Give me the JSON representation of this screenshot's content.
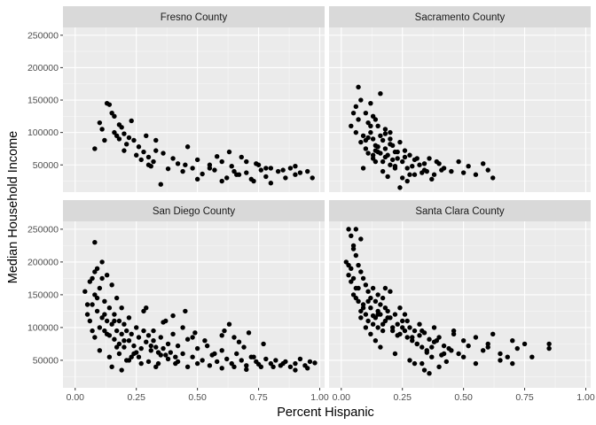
{
  "chart_data": {
    "type": "scatter",
    "xlabel": "Percent Hispanic",
    "ylabel": "Median Household Income",
    "xlim": [
      -0.05,
      1.02
    ],
    "ylim": [
      8000,
      262000
    ],
    "x_ticks": [
      0.0,
      0.25,
      0.5,
      0.75,
      1.0
    ],
    "x_tick_labels": [
      "0.00",
      "0.25",
      "0.50",
      "0.75",
      "1.00"
    ],
    "y_ticks": [
      50000,
      100000,
      150000,
      200000,
      250000
    ],
    "y_tick_labels": [
      "50000",
      "100000",
      "150000",
      "200000",
      "250000"
    ],
    "grid": true,
    "facets": [
      {
        "title": "Fresno County",
        "x": [
          0.08,
          0.1,
          0.11,
          0.13,
          0.14,
          0.15,
          0.16,
          0.16,
          0.17,
          0.18,
          0.18,
          0.19,
          0.2,
          0.21,
          0.22,
          0.23,
          0.24,
          0.25,
          0.26,
          0.27,
          0.28,
          0.29,
          0.3,
          0.31,
          0.32,
          0.33,
          0.35,
          0.36,
          0.38,
          0.4,
          0.42,
          0.44,
          0.46,
          0.48,
          0.5,
          0.52,
          0.55,
          0.57,
          0.6,
          0.62,
          0.64,
          0.66,
          0.68,
          0.7,
          0.72,
          0.74,
          0.76,
          0.78,
          0.8,
          0.83,
          0.86,
          0.88,
          0.9,
          0.92,
          0.95,
          0.97,
          0.12,
          0.2,
          0.3,
          0.33,
          0.45,
          0.5,
          0.55,
          0.6,
          0.65,
          0.7,
          0.75,
          0.8,
          0.85,
          0.9,
          0.58,
          0.63,
          0.67,
          0.73,
          0.78
        ],
        "y": [
          75000,
          115000,
          105000,
          145000,
          143000,
          130000,
          125000,
          100000,
          95000,
          112000,
          90000,
          108000,
          98000,
          82000,
          92000,
          118000,
          88000,
          65000,
          78000,
          58000,
          70000,
          95000,
          62000,
          48000,
          55000,
          72000,
          20000,
          68000,
          44000,
          60000,
          52000,
          40000,
          78000,
          45000,
          58000,
          36000,
          50000,
          42000,
          55000,
          30000,
          48000,
          35000,
          62000,
          38000,
          28000,
          52000,
          42000,
          32000,
          45000,
          40000,
          30000,
          45000,
          35000,
          38000,
          40000,
          30000,
          88000,
          72000,
          50000,
          88000,
          50000,
          28000,
          45000,
          25000,
          40000,
          55000,
          50000,
          22000,
          42000,
          48000,
          63000,
          70000,
          35000,
          25000,
          45000
        ]
      },
      {
        "title": "Sacramento County",
        "x": [
          0.04,
          0.05,
          0.06,
          0.07,
          0.07,
          0.08,
          0.08,
          0.09,
          0.1,
          0.1,
          0.11,
          0.11,
          0.12,
          0.12,
          0.13,
          0.13,
          0.14,
          0.14,
          0.15,
          0.15,
          0.16,
          0.16,
          0.17,
          0.17,
          0.18,
          0.18,
          0.19,
          0.2,
          0.2,
          0.21,
          0.22,
          0.23,
          0.24,
          0.25,
          0.26,
          0.27,
          0.28,
          0.3,
          0.32,
          0.34,
          0.36,
          0.38,
          0.4,
          0.42,
          0.45,
          0.48,
          0.5,
          0.52,
          0.55,
          0.58,
          0.6,
          0.62,
          0.09,
          0.13,
          0.17,
          0.21,
          0.25,
          0.29,
          0.33,
          0.37,
          0.41,
          0.06,
          0.1,
          0.14,
          0.18,
          0.22,
          0.26,
          0.3,
          0.34,
          0.15,
          0.19,
          0.23,
          0.27,
          0.31,
          0.35,
          0.39,
          0.12,
          0.16,
          0.2,
          0.24,
          0.28,
          0.11,
          0.14,
          0.18,
          0.22,
          0.13,
          0.2
        ],
        "y": [
          110000,
          130000,
          100000,
          170000,
          120000,
          150000,
          85000,
          95000,
          130000,
          75000,
          115000,
          68000,
          100000,
          145000,
          90000,
          60000,
          120000,
          80000,
          110000,
          70000,
          95000,
          160000,
          88000,
          55000,
          75000,
          105000,
          65000,
          90000,
          50000,
          80000,
          70000,
          60000,
          85000,
          55000,
          72000,
          45000,
          65000,
          58000,
          50000,
          42000,
          60000,
          35000,
          52000,
          45000,
          40000,
          55000,
          38000,
          48000,
          35000,
          52000,
          42000,
          30000,
          45000,
          65000,
          40000,
          58000,
          30000,
          48000,
          38000,
          28000,
          42000,
          140000,
          88000,
          55000,
          98000,
          48000,
          62000,
          35000,
          52000,
          78000,
          32000,
          70000,
          25000,
          60000,
          40000,
          55000,
          110000,
          68000,
          82000,
          15000,
          35000,
          92000,
          72000,
          62000,
          45000,
          125000,
          100000
        ]
      },
      {
        "title": "San Diego County",
        "x": [
          0.04,
          0.05,
          0.06,
          0.06,
          0.07,
          0.07,
          0.08,
          0.08,
          0.08,
          0.09,
          0.09,
          0.1,
          0.1,
          0.11,
          0.11,
          0.12,
          0.12,
          0.13,
          0.13,
          0.14,
          0.14,
          0.15,
          0.15,
          0.16,
          0.16,
          0.17,
          0.17,
          0.18,
          0.18,
          0.19,
          0.19,
          0.2,
          0.2,
          0.21,
          0.22,
          0.22,
          0.23,
          0.24,
          0.25,
          0.26,
          0.27,
          0.28,
          0.29,
          0.3,
          0.31,
          0.32,
          0.33,
          0.34,
          0.35,
          0.36,
          0.37,
          0.38,
          0.39,
          0.4,
          0.41,
          0.42,
          0.44,
          0.46,
          0.48,
          0.5,
          0.52,
          0.54,
          0.56,
          0.58,
          0.6,
          0.62,
          0.64,
          0.66,
          0.68,
          0.7,
          0.72,
          0.74,
          0.76,
          0.78,
          0.8,
          0.82,
          0.84,
          0.86,
          0.88,
          0.9,
          0.92,
          0.94,
          0.96,
          0.98,
          0.1,
          0.14,
          0.18,
          0.22,
          0.26,
          0.3,
          0.34,
          0.38,
          0.42,
          0.46,
          0.5,
          0.55,
          0.6,
          0.65,
          0.7,
          0.75,
          0.12,
          0.16,
          0.2,
          0.24,
          0.28,
          0.32,
          0.36,
          0.4,
          0.44,
          0.48,
          0.05,
          0.09,
          0.13,
          0.17,
          0.21,
          0.25,
          0.29,
          0.33,
          0.37,
          0.41,
          0.45,
          0.49,
          0.53,
          0.57,
          0.61,
          0.65,
          0.69,
          0.73,
          0.77,
          0.81,
          0.15,
          0.19,
          0.23,
          0.27,
          0.31,
          0.35,
          0.11,
          0.07,
          0.08,
          0.6,
          0.63,
          0.67,
          0.71,
          0.85,
          0.9,
          0.95
        ],
        "y": [
          155000,
          120000,
          170000,
          110000,
          135000,
          95000,
          230000,
          150000,
          85000,
          190000,
          125000,
          160000,
          100000,
          175000,
          115000,
          140000,
          95000,
          180000,
          110000,
          130000,
          88000,
          165000,
          105000,
          120000,
          82000,
          145000,
          95000,
          110000,
          75000,
          130000,
          90000,
          105000,
          70000,
          95000,
          115000,
          80000,
          90000,
          72000,
          100000,
          85000,
          68000,
          95000,
          78000,
          88000,
          65000,
          80000,
          70000,
          62000,
          85000,
          68000,
          58000,
          75000,
          62000,
          90000,
          55000,
          72000,
          60000,
          82000,
          55000,
          68000,
          50000,
          72000,
          58000,
          48000,
          65000,
          52000,
          45000,
          60000,
          50000,
          42000,
          55000,
          48000,
          40000,
          52000,
          45000,
          50000,
          42000,
          48000,
          40000,
          45000,
          52000,
          42000,
          48000,
          46000,
          65000,
          55000,
          60000,
          50000,
          55000,
          48000,
          45000,
          52000,
          48000,
          40000,
          45000,
          42000,
          38000,
          40000,
          36000,
          44000,
          120000,
          110000,
          80000,
          60000,
          125000,
          95000,
          108000,
          118000,
          100000,
          85000,
          135000,
          145000,
          90000,
          70000,
          50000,
          62000,
          130000,
          40000,
          110000,
          45000,
          125000,
          92000,
          80000,
          60000,
          95000,
          85000,
          70000,
          55000,
          75000,
          40000,
          40000,
          35000,
          55000,
          45000,
          72000,
          58000,
          200000,
          175000,
          185000,
          88000,
          105000,
          78000,
          92000,
          45000,
          35000,
          38000
        ]
      },
      {
        "title": "Santa Clara County",
        "x": [
          0.02,
          0.03,
          0.03,
          0.04,
          0.04,
          0.05,
          0.05,
          0.06,
          0.06,
          0.07,
          0.07,
          0.08,
          0.08,
          0.09,
          0.09,
          0.1,
          0.1,
          0.11,
          0.11,
          0.12,
          0.12,
          0.13,
          0.13,
          0.14,
          0.14,
          0.15,
          0.15,
          0.16,
          0.16,
          0.17,
          0.17,
          0.18,
          0.18,
          0.19,
          0.2,
          0.21,
          0.22,
          0.23,
          0.24,
          0.25,
          0.26,
          0.27,
          0.28,
          0.29,
          0.3,
          0.31,
          0.32,
          0.33,
          0.34,
          0.35,
          0.36,
          0.37,
          0.38,
          0.4,
          0.42,
          0.44,
          0.46,
          0.48,
          0.5,
          0.52,
          0.55,
          0.58,
          0.6,
          0.62,
          0.65,
          0.68,
          0.7,
          0.72,
          0.75,
          0.78,
          0.85,
          0.85,
          0.05,
          0.07,
          0.09,
          0.11,
          0.13,
          0.15,
          0.17,
          0.19,
          0.21,
          0.23,
          0.25,
          0.27,
          0.29,
          0.31,
          0.33,
          0.35,
          0.37,
          0.39,
          0.41,
          0.43,
          0.45,
          0.04,
          0.06,
          0.08,
          0.1,
          0.12,
          0.14,
          0.16,
          0.18,
          0.2,
          0.22,
          0.24,
          0.26,
          0.28,
          0.3,
          0.32,
          0.34,
          0.36,
          0.4,
          0.15,
          0.33,
          0.38,
          0.42,
          0.46,
          0.5,
          0.55,
          0.6,
          0.65,
          0.7,
          0.05,
          0.06,
          0.08,
          0.03
        ],
        "y": [
          200000,
          250000,
          180000,
          240000,
          170000,
          225000,
          150000,
          210000,
          160000,
          195000,
          140000,
          185000,
          125000,
          175000,
          135000,
          165000,
          120000,
          155000,
          110000,
          145000,
          130000,
          160000,
          105000,
          140000,
          115000,
          150000,
          100000,
          135000,
          120000,
          145000,
          95000,
          130000,
          110000,
          125000,
          115000,
          100000,
          120000,
          105000,
          90000,
          110000,
          95000,
          85000,
          100000,
          80000,
          95000,
          75000,
          88000,
          70000,
          92000,
          65000,
          82000,
          55000,
          78000,
          85000,
          72000,
          68000,
          90000,
          60000,
          80000,
          72000,
          85000,
          65000,
          75000,
          90000,
          60000,
          55000,
          80000,
          68000,
          75000,
          55000,
          75000,
          68000,
          175000,
          160000,
          130000,
          140000,
          118000,
          125000,
          105000,
          115000,
          95000,
          88000,
          100000,
          110000,
          85000,
          75000,
          95000,
          62000,
          70000,
          80000,
          58000,
          48000,
          65000,
          190000,
          145000,
          115000,
          100000,
          90000,
          80000,
          70000,
          160000,
          155000,
          60000,
          130000,
          120000,
          50000,
          45000,
          105000,
          35000,
          30000,
          40000,
          120000,
          45000,
          100000,
          60000,
          95000,
          55000,
          45000,
          70000,
          50000,
          45000,
          220000,
          250000,
          235000,
          195000
        ]
      }
    ]
  }
}
